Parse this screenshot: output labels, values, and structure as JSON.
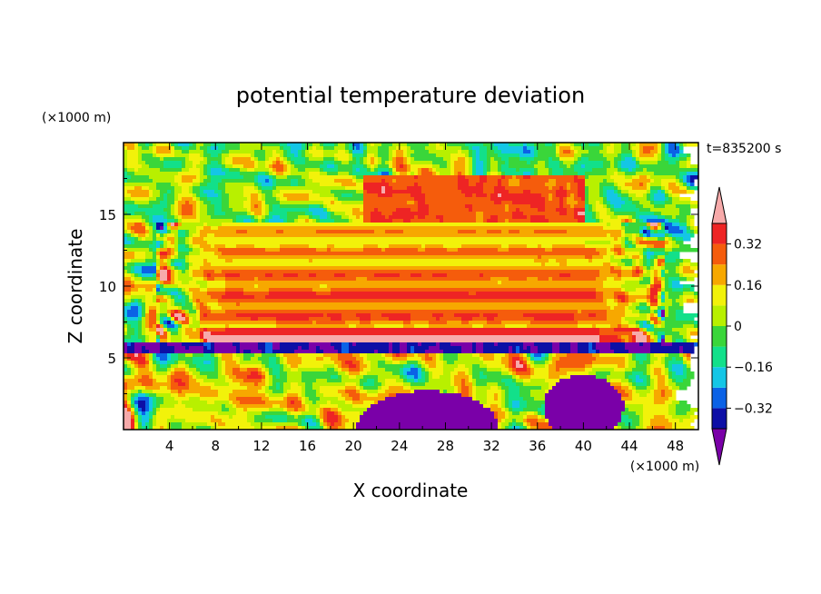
{
  "chart_data": {
    "type": "heatmap",
    "title": "potential temperature deviation",
    "xlabel": "X coordinate",
    "ylabel": "Z coordinate",
    "x_unit": "(×1000 m)",
    "y_unit": "(×1000 m)",
    "time_label": "t=835200 s",
    "xlim": [
      0,
      50
    ],
    "ylim": [
      0,
      20
    ],
    "x_ticks": [
      4,
      8,
      12,
      16,
      20,
      24,
      28,
      32,
      36,
      40,
      44,
      48
    ],
    "y_ticks": [
      5,
      10,
      15
    ],
    "colorbar": {
      "ticks": [
        "0.32",
        "0.16",
        "0",
        "-0.16",
        "-0.32"
      ],
      "tick_values": [
        0.32,
        0.16,
        0,
        -0.16,
        -0.32
      ],
      "levels": [
        -0.4,
        -0.32,
        -0.24,
        -0.16,
        -0.08,
        0,
        0.08,
        0.16,
        0.24,
        0.32,
        0.4
      ],
      "colors": [
        "#7a00a8",
        "#0d0fa6",
        "#0b62e6",
        "#14c6e6",
        "#12e08a",
        "#3ad63a",
        "#b8f000",
        "#f2f20a",
        "#f7a800",
        "#f55c0c",
        "#ee2424",
        "#f7aaaa"
      ],
      "extend": "both"
    }
  }
}
